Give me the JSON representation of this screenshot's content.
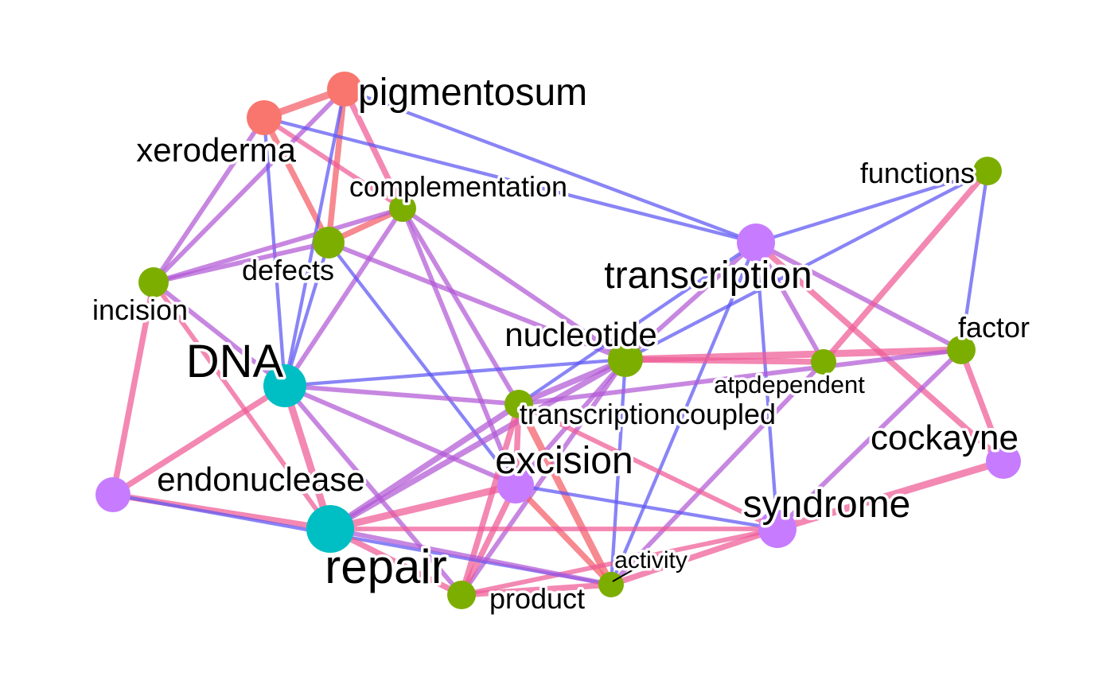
{
  "colors": {
    "red": "#F8766D",
    "green": "#7CAE00",
    "teal": "#00BFC4",
    "purple": "#C77CFF",
    "edge_blue": "#5B55F3",
    "edge_violet": "#B259D6",
    "edge_pink": "#EE5A96",
    "edge_red": "#F45C66"
  },
  "nodes": [
    {
      "id": "pigmentosum",
      "label": "pigmentosum",
      "group": "red"
    },
    {
      "id": "xeroderma",
      "label": "xeroderma",
      "group": "red"
    },
    {
      "id": "functions",
      "label": "functions",
      "group": "green"
    },
    {
      "id": "complementation",
      "label": "complementation",
      "group": "green"
    },
    {
      "id": "defects",
      "label": "defects",
      "group": "green"
    },
    {
      "id": "transcription",
      "label": "transcription",
      "group": "purple"
    },
    {
      "id": "incision",
      "label": "incision",
      "group": "green"
    },
    {
      "id": "nucleotide",
      "label": "nucleotide",
      "group": "green"
    },
    {
      "id": "factor",
      "label": "factor",
      "group": "green"
    },
    {
      "id": "DNA",
      "label": "DNA",
      "group": "teal"
    },
    {
      "id": "atpdependent",
      "label": "atpdependent",
      "group": "green"
    },
    {
      "id": "transcriptioncoupled",
      "label": "transcriptioncoupled",
      "group": "green"
    },
    {
      "id": "cockayne",
      "label": "cockayne",
      "group": "purple"
    },
    {
      "id": "excision",
      "label": "excision",
      "group": "purple"
    },
    {
      "id": "endonuclease",
      "label": "endonuclease",
      "group": "purple"
    },
    {
      "id": "syndrome",
      "label": "syndrome",
      "group": "purple"
    },
    {
      "id": "repair",
      "label": "repair",
      "group": "teal"
    },
    {
      "id": "activity",
      "label": "activity",
      "group": "green"
    },
    {
      "id": "product",
      "label": "product",
      "group": "green"
    }
  ],
  "edges": [
    {
      "source": "xeroderma",
      "target": "pigmentosum",
      "weight": 5,
      "color": "edge_red"
    },
    {
      "source": "pigmentosum",
      "target": "defects",
      "weight": 4,
      "color": "edge_red"
    },
    {
      "source": "xeroderma",
      "target": "defects",
      "weight": 4,
      "color": "edge_red"
    },
    {
      "source": "defects",
      "target": "complementation",
      "weight": 4,
      "color": "edge_red"
    },
    {
      "source": "pigmentosum",
      "target": "complementation",
      "weight": 4,
      "color": "edge_pink"
    },
    {
      "source": "xeroderma",
      "target": "complementation",
      "weight": 3,
      "color": "edge_pink"
    },
    {
      "source": "xeroderma",
      "target": "incision",
      "weight": 3,
      "color": "edge_violet"
    },
    {
      "source": "pigmentosum",
      "target": "incision",
      "weight": 3,
      "color": "edge_violet"
    },
    {
      "source": "xeroderma",
      "target": "transcription",
      "weight": 2,
      "color": "edge_blue"
    },
    {
      "source": "pigmentosum",
      "target": "transcription",
      "weight": 2,
      "color": "edge_blue"
    },
    {
      "source": "xeroderma",
      "target": "DNA",
      "weight": 2,
      "color": "edge_blue"
    },
    {
      "source": "pigmentosum",
      "target": "DNA",
      "weight": 2,
      "color": "edge_blue"
    },
    {
      "source": "incision",
      "target": "endonuclease",
      "weight": 4,
      "color": "edge_pink"
    },
    {
      "source": "incision",
      "target": "complementation",
      "weight": 3,
      "color": "edge_violet"
    },
    {
      "source": "incision",
      "target": "defects",
      "weight": 3,
      "color": "edge_violet"
    },
    {
      "source": "incision",
      "target": "repair",
      "weight": 3,
      "color": "edge_pink"
    },
    {
      "source": "complementation",
      "target": "DNA",
      "weight": 3,
      "color": "edge_violet"
    },
    {
      "source": "defects",
      "target": "DNA",
      "weight": 2,
      "color": "edge_blue"
    },
    {
      "source": "complementation",
      "target": "excision",
      "weight": 3,
      "color": "edge_violet"
    },
    {
      "source": "complementation",
      "target": "nucleotide",
      "weight": 3,
      "color": "edge_violet"
    },
    {
      "source": "complementation",
      "target": "transcriptioncoupled",
      "weight": 3,
      "color": "edge_violet"
    },
    {
      "source": "defects",
      "target": "nucleotide",
      "weight": 3,
      "color": "edge_violet"
    },
    {
      "source": "defects",
      "target": "excision",
      "weight": 2,
      "color": "edge_blue"
    },
    {
      "source": "transcription",
      "target": "functions",
      "weight": 2,
      "color": "edge_blue"
    },
    {
      "source": "transcription",
      "target": "factor",
      "weight": 3,
      "color": "edge_violet"
    },
    {
      "source": "transcription",
      "target": "atpdependent",
      "weight": 3,
      "color": "edge_violet"
    },
    {
      "source": "transcription",
      "target": "cockayne",
      "weight": 4,
      "color": "edge_pink"
    },
    {
      "source": "transcription",
      "target": "syndrome",
      "weight": 2,
      "color": "edge_blue"
    },
    {
      "source": "transcription",
      "target": "nucleotide",
      "weight": 3,
      "color": "edge_violet"
    },
    {
      "source": "transcription",
      "target": "transcriptioncoupled",
      "weight": 2,
      "color": "edge_blue"
    },
    {
      "source": "transcription",
      "target": "activity",
      "weight": 2,
      "color": "edge_blue"
    },
    {
      "source": "functions",
      "target": "atpdependent",
      "weight": 4,
      "color": "edge_pink"
    },
    {
      "source": "functions",
      "target": "factor",
      "weight": 2,
      "color": "edge_blue"
    },
    {
      "source": "functions",
      "target": "nucleotide",
      "weight": 2,
      "color": "edge_blue"
    },
    {
      "source": "nucleotide",
      "target": "factor",
      "weight": 5,
      "color": "edge_pink"
    },
    {
      "source": "nucleotide",
      "target": "atpdependent",
      "weight": 4,
      "color": "edge_pink"
    },
    {
      "source": "nucleotide",
      "target": "DNA",
      "weight": 2,
      "color": "edge_blue"
    },
    {
      "source": "nucleotide",
      "target": "transcriptioncoupled",
      "weight": 4,
      "color": "edge_violet"
    },
    {
      "source": "nucleotide",
      "target": "excision",
      "weight": 3,
      "color": "edge_violet"
    },
    {
      "source": "nucleotide",
      "target": "repair",
      "weight": 4,
      "color": "edge_violet"
    },
    {
      "source": "nucleotide",
      "target": "product",
      "weight": 3,
      "color": "edge_violet"
    },
    {
      "source": "nucleotide",
      "target": "activity",
      "weight": 2,
      "color": "edge_blue"
    },
    {
      "source": "factor",
      "target": "transcriptioncoupled",
      "weight": 3,
      "color": "edge_violet"
    },
    {
      "source": "factor",
      "target": "cockayne",
      "weight": 4,
      "color": "edge_pink"
    },
    {
      "source": "factor",
      "target": "syndrome",
      "weight": 3,
      "color": "edge_violet"
    },
    {
      "source": "atpdependent",
      "target": "activity",
      "weight": 3,
      "color": "edge_violet"
    },
    {
      "source": "DNA",
      "target": "transcriptioncoupled",
      "weight": 3,
      "color": "edge_violet"
    },
    {
      "source": "DNA",
      "target": "excision",
      "weight": 3,
      "color": "edge_violet"
    },
    {
      "source": "DNA",
      "target": "endonuclease",
      "weight": 4,
      "color": "edge_pink"
    },
    {
      "source": "DNA",
      "target": "repair",
      "weight": 5,
      "color": "edge_pink"
    },
    {
      "source": "DNA",
      "target": "product",
      "weight": 3,
      "color": "edge_violet"
    },
    {
      "source": "DNA",
      "target": "incision",
      "weight": 3,
      "color": "edge_violet"
    },
    {
      "source": "transcriptioncoupled",
      "target": "excision",
      "weight": 4,
      "color": "edge_pink"
    },
    {
      "source": "transcriptioncoupled",
      "target": "repair",
      "weight": 4,
      "color": "edge_violet"
    },
    {
      "source": "transcriptioncoupled",
      "target": "product",
      "weight": 4,
      "color": "edge_pink"
    },
    {
      "source": "transcriptioncoupled",
      "target": "activity",
      "weight": 5,
      "color": "edge_red"
    },
    {
      "source": "transcriptioncoupled",
      "target": "syndrome",
      "weight": 3,
      "color": "edge_pink"
    },
    {
      "source": "excision",
      "target": "repair",
      "weight": 5,
      "color": "edge_pink"
    },
    {
      "source": "excision",
      "target": "product",
      "weight": 4,
      "color": "edge_pink"
    },
    {
      "source": "excision",
      "target": "activity",
      "weight": 4,
      "color": "edge_red"
    },
    {
      "source": "excision",
      "target": "syndrome",
      "weight": 2,
      "color": "edge_blue"
    },
    {
      "source": "cockayne",
      "target": "syndrome",
      "weight": 5,
      "color": "edge_pink"
    },
    {
      "source": "syndrome",
      "target": "activity",
      "weight": 4,
      "color": "edge_pink"
    },
    {
      "source": "syndrome",
      "target": "product",
      "weight": 3,
      "color": "edge_pink"
    },
    {
      "source": "endonuclease",
      "target": "repair",
      "weight": 4,
      "color": "edge_pink"
    },
    {
      "source": "endonuclease",
      "target": "activity",
      "weight": 2,
      "color": "edge_blue"
    },
    {
      "source": "repair",
      "target": "product",
      "weight": 4,
      "color": "edge_pink"
    },
    {
      "source": "repair",
      "target": "activity",
      "weight": 3,
      "color": "edge_violet"
    },
    {
      "source": "repair",
      "target": "syndrome",
      "weight": 3,
      "color": "edge_pink"
    },
    {
      "source": "product",
      "target": "activity",
      "weight": 4,
      "color": "edge_pink"
    }
  ]
}
